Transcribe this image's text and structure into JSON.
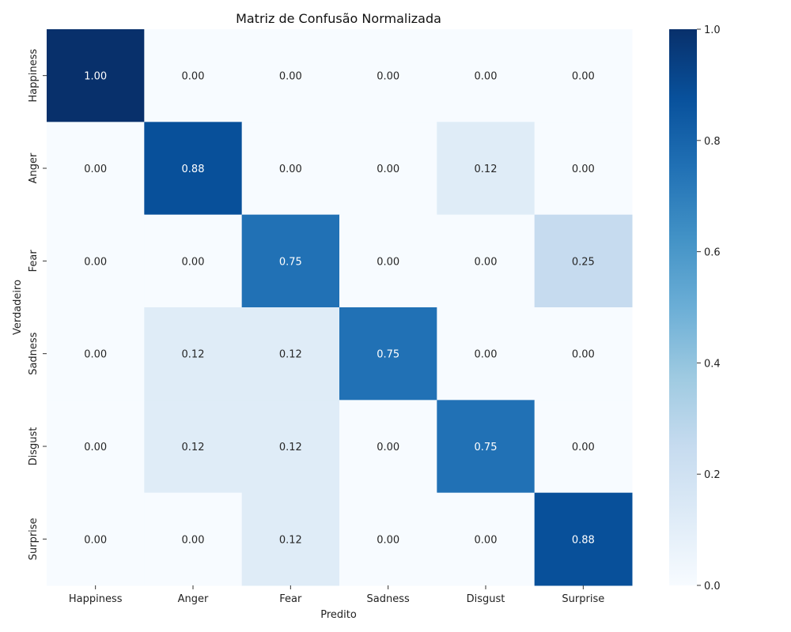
{
  "chart_data": {
    "type": "heatmap",
    "title": "Matriz de Confusão Normalizada",
    "xlabel": "Predito",
    "ylabel": "Verdadeiro",
    "x_categories": [
      "Happiness",
      "Anger",
      "Fear",
      "Sadness",
      "Disgust",
      "Surprise"
    ],
    "y_categories": [
      "Happiness",
      "Anger",
      "Fear",
      "Sadness",
      "Disgust",
      "Surprise"
    ],
    "values": [
      [
        1.0,
        0.0,
        0.0,
        0.0,
        0.0,
        0.0
      ],
      [
        0.0,
        0.88,
        0.0,
        0.0,
        0.12,
        0.0
      ],
      [
        0.0,
        0.0,
        0.75,
        0.0,
        0.0,
        0.25
      ],
      [
        0.0,
        0.12,
        0.12,
        0.75,
        0.0,
        0.0
      ],
      [
        0.0,
        0.12,
        0.12,
        0.0,
        0.75,
        0.0
      ],
      [
        0.0,
        0.0,
        0.12,
        0.0,
        0.0,
        0.88
      ]
    ],
    "value_format": "0.00",
    "colormap": "Blues",
    "color_range": [
      0.0,
      1.0
    ],
    "colorbar_ticks": [
      0.0,
      0.2,
      0.4,
      0.6,
      0.8,
      1.0
    ],
    "colorbar_tick_labels": [
      "0.0",
      "0.2",
      "0.4",
      "0.6",
      "0.8",
      "1.0"
    ]
  }
}
